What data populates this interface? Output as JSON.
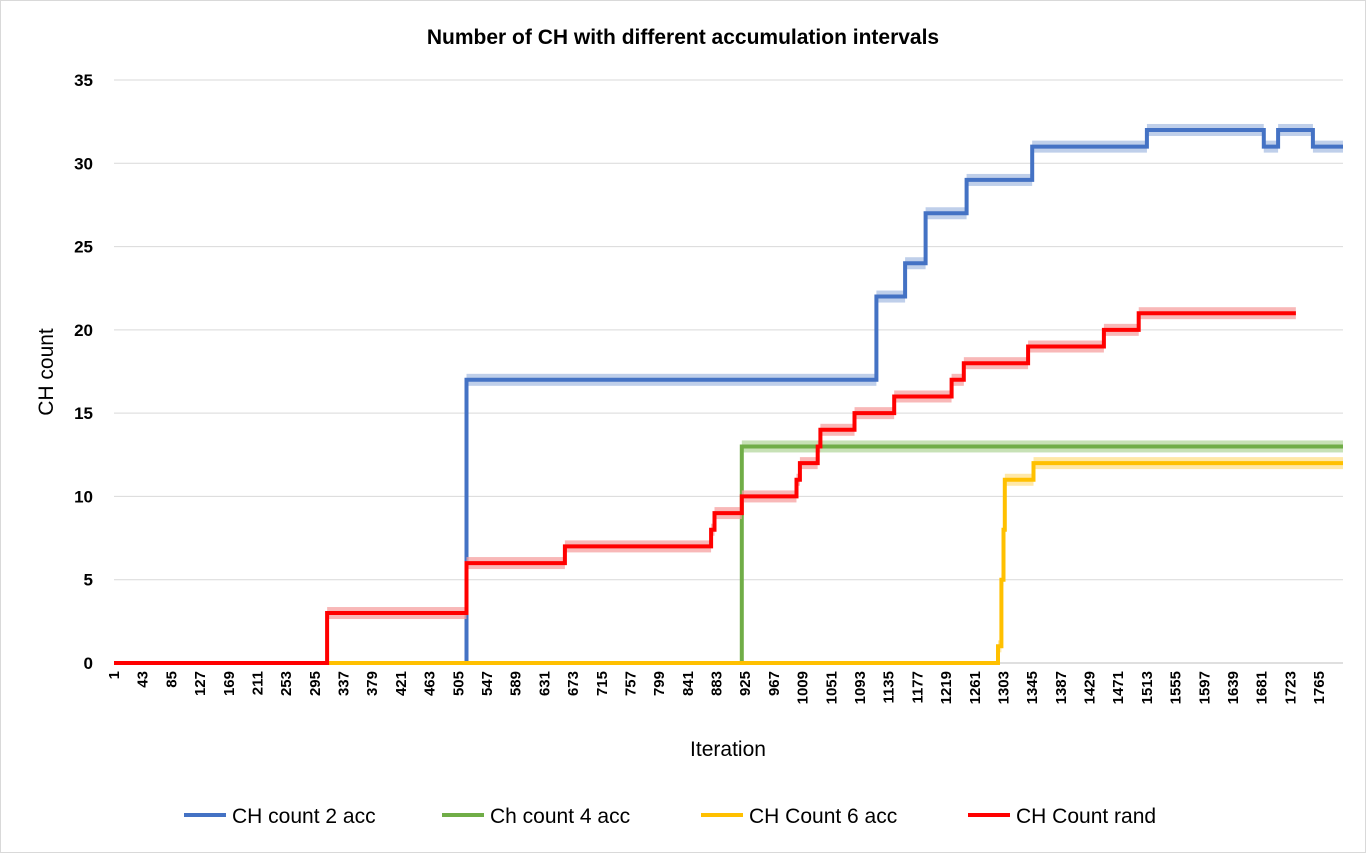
{
  "chart_data": {
    "type": "line",
    "title": "Number of CH with different accumulation intervals",
    "xlabel": "Iteration",
    "ylabel": "CH count",
    "ylim": [
      0,
      35
    ],
    "yticks": [
      "0",
      "5",
      "10",
      "15",
      "20",
      "25",
      "30",
      "35"
    ],
    "xlim": [
      1,
      1800
    ],
    "xticks": [
      "1",
      "43",
      "85",
      "127",
      "169",
      "211",
      "253",
      "295",
      "337",
      "379",
      "421",
      "463",
      "505",
      "547",
      "589",
      "631",
      "673",
      "715",
      "757",
      "799",
      "841",
      "883",
      "925",
      "967",
      "1009",
      "1051",
      "1093",
      "1135",
      "1177",
      "1219",
      "1261",
      "1303",
      "1345",
      "1387",
      "1429",
      "1471",
      "1513",
      "1555",
      "1597",
      "1639",
      "1681",
      "1723",
      "1765"
    ],
    "grid": true,
    "legend_position": "bottom",
    "series": [
      {
        "name": "CH count 2 acc",
        "color": "#4472C4",
        "band_color": "#A9BFE3",
        "steps": [
          [
            1,
            0
          ],
          [
            517,
            17
          ],
          [
            1117,
            22
          ],
          [
            1159,
            24
          ],
          [
            1189,
            27
          ],
          [
            1249,
            29
          ],
          [
            1345,
            31
          ],
          [
            1513,
            32
          ],
          [
            1684,
            31
          ],
          [
            1705,
            32
          ],
          [
            1756,
            31
          ],
          [
            1800,
            31
          ]
        ]
      },
      {
        "name": "Ch count 4 acc",
        "color": "#70AD47",
        "band_color": "#B4D79D",
        "steps": [
          [
            1,
            0
          ],
          [
            920,
            13
          ],
          [
            1800,
            13
          ]
        ]
      },
      {
        "name": "CH Count 6 acc",
        "color": "#FFC000",
        "band_color": "#FFE08A",
        "steps": [
          [
            1,
            0
          ],
          [
            1295,
            1
          ],
          [
            1300,
            5
          ],
          [
            1303,
            8
          ],
          [
            1305,
            11
          ],
          [
            1347,
            12
          ],
          [
            1800,
            12
          ]
        ]
      },
      {
        "name": "CH Count rand",
        "color": "#FF0000",
        "band_color": "#F6A0A0",
        "steps": [
          [
            1,
            0
          ],
          [
            313,
            3
          ],
          [
            517,
            6
          ],
          [
            661,
            7
          ],
          [
            875,
            8
          ],
          [
            880,
            9
          ],
          [
            920,
            10
          ],
          [
            1000,
            11
          ],
          [
            1005,
            12
          ],
          [
            1031,
            13
          ],
          [
            1035,
            14
          ],
          [
            1085,
            15
          ],
          [
            1143,
            16
          ],
          [
            1227,
            17
          ],
          [
            1245,
            18
          ],
          [
            1339,
            19
          ],
          [
            1450,
            20
          ],
          [
            1501,
            21
          ],
          [
            1731,
            21
          ]
        ]
      }
    ]
  }
}
